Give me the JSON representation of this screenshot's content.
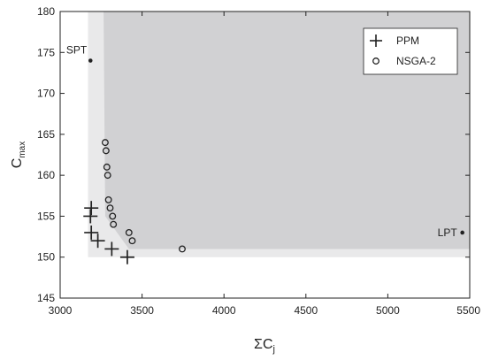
{
  "chart_data": {
    "type": "scatter",
    "xlabel": "ΣC",
    "xlabel_sub": "j",
    "ylabel": "C",
    "ylabel_sub": "max",
    "xlim": [
      3000,
      5500
    ],
    "ylim": [
      145,
      180
    ],
    "xticks": [
      3000,
      3500,
      4000,
      4500,
      5000,
      5500
    ],
    "yticks": [
      145,
      150,
      155,
      160,
      165,
      170,
      175,
      180
    ],
    "grid": false,
    "legend_position": "top-right",
    "series": [
      {
        "name": "PPM",
        "marker": "plus",
        "points": [
          [
            3190,
            156
          ],
          [
            3185,
            155
          ],
          [
            3190,
            153
          ],
          [
            3230,
            152
          ],
          [
            3315,
            151
          ],
          [
            3410,
            150
          ]
        ]
      },
      {
        "name": "NSGA-2",
        "marker": "circle",
        "points": [
          [
            3275,
            164
          ],
          [
            3280,
            163
          ],
          [
            3285,
            161
          ],
          [
            3290,
            160
          ],
          [
            3295,
            157
          ],
          [
            3305,
            156
          ],
          [
            3320,
            155
          ],
          [
            3325,
            154
          ],
          [
            3420,
            153
          ],
          [
            3440,
            152
          ],
          [
            3745,
            151
          ]
        ]
      }
    ],
    "annotations": [
      {
        "label": "SPT",
        "x": 3185,
        "y": 174
      },
      {
        "label": "LPT",
        "x": 5455,
        "y": 153
      }
    ],
    "regions": {
      "light_boundary": [
        [
          3170,
          180
        ],
        [
          3170,
          150
        ],
        [
          5500,
          150
        ]
      ],
      "dark_boundary": [
        [
          3265,
          180
        ],
        [
          3275,
          155
        ],
        [
          3420,
          151
        ],
        [
          5500,
          151
        ]
      ],
      "light_color": "#e9e9ea",
      "dark_color": "#d1d1d3"
    }
  }
}
